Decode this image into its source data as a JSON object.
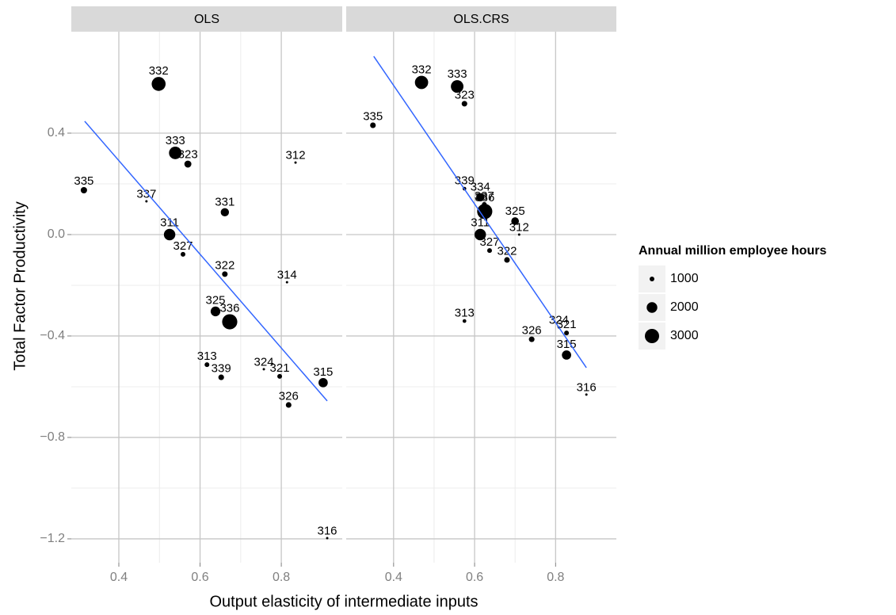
{
  "chart_data": [
    {
      "type": "scatter",
      "title": "OLS",
      "xlabel": "Output elasticity of intermediate inputs",
      "ylabel": "Total Factor Productivity",
      "size_legend": {
        "title": "Annual million employee hours",
        "values": [
          1000,
          2000,
          3000
        ]
      },
      "color": "#000000",
      "x": [
        0.498,
        0.539,
        0.57,
        0.835,
        0.314,
        0.468,
        0.661,
        0.525,
        0.558,
        0.661,
        0.814,
        0.638,
        0.673,
        0.617,
        0.652,
        0.757,
        0.796,
        0.903,
        0.818,
        0.913
      ],
      "values": [
        0.594,
        0.322,
        0.278,
        0.284,
        0.175,
        0.131,
        0.088,
        0.0,
        -0.078,
        -0.156,
        -0.188,
        -0.303,
        -0.344,
        -0.513,
        -0.563,
        -0.531,
        -0.559,
        -0.584,
        -0.672,
        -1.197
      ],
      "sizes": [
        2900,
        2500,
        1300,
        500,
        1200,
        800,
        1500,
        2200,
        1000,
        1100,
        400,
        1800,
        3300,
        1000,
        1100,
        400,
        1000,
        1700,
        1100,
        300
      ],
      "point_labels": [
        "332",
        "333",
        "323",
        "312",
        "335",
        "337",
        "331",
        "311",
        "327",
        "322",
        "314",
        "325",
        "336",
        "313",
        "339",
        "324",
        "321",
        "315",
        "326",
        "316"
      ],
      "fit_line": {
        "x": [
          0.316,
          0.913
        ],
        "y": [
          0.447,
          -0.656
        ],
        "color": "#3366ff"
      },
      "xlim": [
        0.283,
        0.95
      ],
      "ylim": [
        -1.294,
        0.8
      ],
      "xticks": [
        0.4,
        0.6,
        0.8
      ],
      "yticks": [
        0.4,
        {
          "value": 0,
          "label": "0.0"
        },
        {
          "value": -0.4,
          "label": "−0.4"
        },
        {
          "value": -0.8,
          "label": "−0.8"
        },
        {
          "value": -1.2,
          "label": "−1.2"
        }
      ],
      "grid": true
    },
    {
      "type": "scatter",
      "title": "OLS.CRS",
      "color": "#000000",
      "x": [
        0.469,
        0.557,
        0.575,
        0.349,
        0.575,
        0.614,
        0.624,
        0.625,
        0.7,
        0.71,
        0.614,
        0.637,
        0.68,
        0.575,
        0.808,
        0.827,
        0.741,
        0.827,
        0.876
      ],
      "values": [
        0.6,
        0.584,
        0.516,
        0.431,
        0.181,
        0.147,
        0.119,
        0.091,
        0.053,
        0.0,
        0.0,
        -0.063,
        -0.1,
        -0.341,
        -0.366,
        -0.388,
        -0.413,
        -0.475,
        -0.631
      ],
      "sizes": [
        2700,
        2500,
        1100,
        1100,
        900,
        1500,
        1000,
        3300,
        1400,
        400,
        2200,
        1000,
        1100,
        900,
        400,
        1000,
        1100,
        1700,
        300
      ],
      "point_labels": [
        "332",
        "333",
        "323",
        "335",
        "339",
        "334",
        "337",
        "336",
        "325",
        "312",
        "311",
        "327",
        "322",
        "313",
        "324",
        "321",
        "326",
        "315",
        "316"
      ],
      "fit_line": {
        "x": [
          0.351,
          0.876
        ],
        "y": [
          0.703,
          -0.525
        ],
        "color": "#3366ff"
      },
      "xlim": [
        0.283,
        0.95
      ],
      "ylim": [
        -1.294,
        0.8
      ],
      "xticks": [
        0.4,
        0.6,
        0.8
      ],
      "grid": true
    }
  ]
}
